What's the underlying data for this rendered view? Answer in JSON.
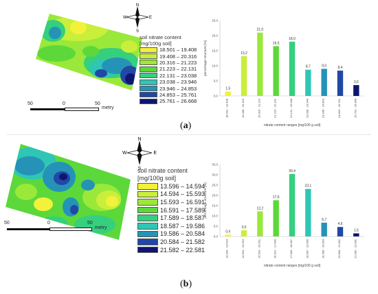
{
  "panels": [
    {
      "id": "a",
      "label": "a",
      "compass": {
        "n": "N",
        "s": "S",
        "e": "E",
        "w": "W"
      },
      "legend": {
        "title_line1": "soil nitrate content",
        "title_line2": "[mg/100g soil]",
        "classes": [
          {
            "label": "18.501 – 19.408",
            "color": "#f2f23a"
          },
          {
            "label": "19.408 – 20.316",
            "color": "#c9ef3b"
          },
          {
            "label": "20.316 – 21.223",
            "color": "#9ae83a"
          },
          {
            "label": "21.223 – 22.131",
            "color": "#5cd83a"
          },
          {
            "label": "22.131 – 23.038",
            "color": "#35cf7e"
          },
          {
            "label": "23.038 – 23.946",
            "color": "#2fc6b5"
          },
          {
            "label": "23.946 – 24.853",
            "color": "#2593b7"
          },
          {
            "label": "24.853 – 25.761",
            "color": "#2148a6"
          },
          {
            "label": "25.761 – 26.668",
            "color": "#0f1570"
          }
        ]
      },
      "scale": {
        "left": "50",
        "mid": "0",
        "right": "50",
        "unit": "metry"
      }
    },
    {
      "id": "b",
      "label": "b",
      "compass": {
        "n": "N",
        "s": "S",
        "e": "E",
        "w": "W"
      },
      "legend": {
        "title_line1": "soil nitrate content",
        "title_line2": "[mg/100g soil]",
        "classes": [
          {
            "label": "13.596 – 14.594",
            "color": "#f2f23a"
          },
          {
            "label": "14.594 – 15.593",
            "color": "#c9ef3b"
          },
          {
            "label": "15.593 – 16.591",
            "color": "#9ae83a"
          },
          {
            "label": "16.591 – 17.589",
            "color": "#5cd83a"
          },
          {
            "label": "17.589 – 18.587",
            "color": "#35cf7e"
          },
          {
            "label": "18.587 – 19.586",
            "color": "#2fc6b5"
          },
          {
            "label": "19.586 – 20.584",
            "color": "#2593b7"
          },
          {
            "label": "20.584 – 21.582",
            "color": "#2148a6"
          },
          {
            "label": "21.582 – 22.581",
            "color": "#0f1570"
          }
        ]
      },
      "scale": {
        "left": "50",
        "mid": "0",
        "right": "50",
        "unit": "metry"
      }
    }
  ],
  "chart_data": [
    {
      "type": "bar",
      "categories": [
        "18.501 - 19.408",
        "19.408 - 20.316",
        "20.316 - 21.223",
        "21.223 - 22.131",
        "22.131 - 23.038",
        "23.038 - 23.946",
        "23.946 - 24.853",
        "24.853 - 25.761",
        "25.761 - 26.668"
      ],
      "values": [
        1.5,
        13.2,
        21.0,
        16.5,
        18.0,
        8.7,
        9.0,
        8.4,
        3.6
      ],
      "value_labels": [
        "1,5",
        "13,2",
        "21,0",
        "16,5",
        "18,0",
        "8,7",
        "9,0",
        "8,4",
        "3,6"
      ],
      "bar_colors": [
        "#f2f23a",
        "#c9ef3b",
        "#9ae83a",
        "#5cd83a",
        "#35cf7e",
        "#2fc6b5",
        "#2593b7",
        "#2148a6",
        "#0f1570"
      ],
      "ylim": [
        0,
        25
      ],
      "yticks": [
        "0,0",
        "5,0",
        "10,0",
        "15,0",
        "20,0",
        "25,0"
      ],
      "ylabel": "percentage structure [%]",
      "xlabel": "nitrate content ranges [mg/100 g soil]",
      "grid": false
    },
    {
      "type": "bar",
      "categories": [
        "13.596 - 14.594",
        "14.594 - 15.593",
        "15.593 - 16.591",
        "16.591 - 17.589",
        "17.589 - 18.587",
        "18.587 - 19.586",
        "19.586 - 20.584",
        "20.584 - 21.582",
        "21.582 - 22.581"
      ],
      "values": [
        0.9,
        3.0,
        12.2,
        17.6,
        30.4,
        23.1,
        6.7,
        4.6,
        1.5
      ],
      "value_labels": [
        "0,9",
        "3,0",
        "12,2",
        "17,6",
        "30,4",
        "23,1",
        "6,7",
        "4,6",
        "1,5"
      ],
      "bar_colors": [
        "#f2f23a",
        "#c9ef3b",
        "#9ae83a",
        "#5cd83a",
        "#35cf7e",
        "#2fc6b5",
        "#2593b7",
        "#2148a6",
        "#0f1570"
      ],
      "ylim": [
        0,
        35
      ],
      "yticks": [
        "0,0",
        "5,0",
        "10,0",
        "15,0",
        "20,0",
        "25,0",
        "30,0",
        "35,0"
      ],
      "ylabel": "percentage structure [%]",
      "xlabel": "nitrate content ranges [mg/100 g soil]",
      "grid": false
    }
  ]
}
